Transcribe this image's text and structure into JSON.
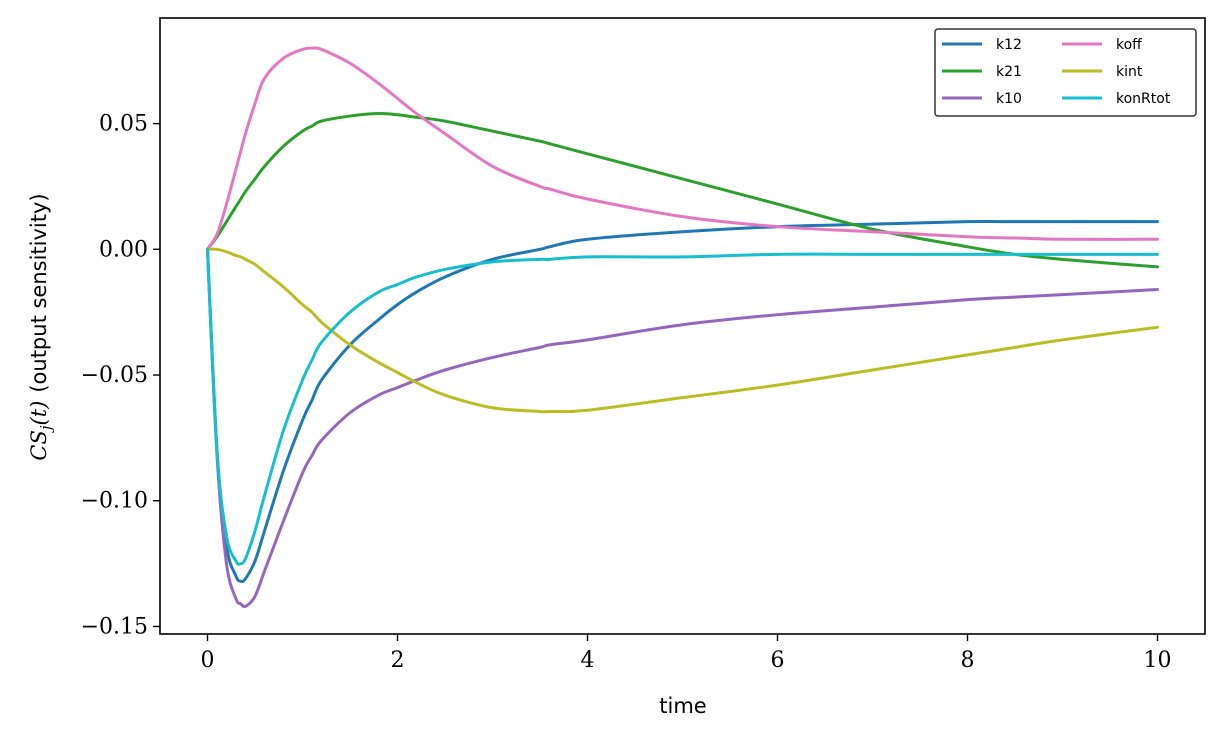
{
  "chart_data": {
    "type": "line",
    "xlabel": "time",
    "ylabel": "CS_j(t) (output sensitivity)",
    "ylabel_parts": {
      "math": "CS",
      "sub": "j",
      "arg": "(t)",
      "text": "(output sensitivity)"
    },
    "xlim": [
      -0.5,
      10.5
    ],
    "ylim": [
      -0.153,
      0.092
    ],
    "x_ticks": [
      0,
      2,
      4,
      6,
      8,
      10
    ],
    "x_tick_labels": [
      "0",
      "2",
      "4",
      "6",
      "8",
      "10"
    ],
    "y_ticks": [
      -0.15,
      -0.1,
      -0.05,
      0.0,
      0.05
    ],
    "y_tick_labels": [
      "−0.15",
      "−0.10",
      "−0.05",
      "0.00",
      "0.05"
    ],
    "grid": false,
    "legend": {
      "placement": "top-right",
      "columns": 2
    },
    "x": [
      0,
      0.1,
      0.2,
      0.3,
      0.35,
      0.4,
      0.5,
      0.6,
      0.8,
      1.0,
      1.1,
      1.2,
      1.5,
      1.8,
      2.0,
      2.2,
      2.5,
      3.0,
      3.5,
      3.6,
      4.0,
      5.0,
      6.0,
      7.0,
      8.0,
      8.5,
      9.0,
      10.0
    ],
    "series": [
      {
        "name": "k12",
        "color": "#1f77b4",
        "values": [
          0,
          -0.08,
          -0.118,
          -0.13,
          -0.132,
          -0.131,
          -0.124,
          -0.112,
          -0.088,
          -0.068,
          -0.06,
          -0.052,
          -0.038,
          -0.028,
          -0.022,
          -0.017,
          -0.011,
          -0.004,
          0.0,
          0.001,
          0.004,
          0.007,
          0.009,
          0.01,
          0.011,
          0.011,
          0.011,
          0.011
        ]
      },
      {
        "name": "k21",
        "color": "#2ca02c",
        "values": [
          0,
          0.005,
          0.011,
          0.017,
          0.02,
          0.023,
          0.028,
          0.033,
          0.041,
          0.047,
          0.049,
          0.051,
          0.053,
          0.054,
          0.0535,
          0.0525,
          0.051,
          0.047,
          0.043,
          0.042,
          0.038,
          0.028,
          0.018,
          0.008,
          0.001,
          -0.002,
          -0.004,
          -0.007
        ]
      },
      {
        "name": "k10",
        "color": "#9467bd",
        "values": [
          0,
          -0.082,
          -0.125,
          -0.139,
          -0.141,
          -0.142,
          -0.138,
          -0.128,
          -0.108,
          -0.089,
          -0.082,
          -0.076,
          -0.065,
          -0.058,
          -0.055,
          -0.052,
          -0.048,
          -0.043,
          -0.039,
          -0.038,
          -0.036,
          -0.03,
          -0.026,
          -0.023,
          -0.02,
          -0.019,
          -0.018,
          -0.016
        ]
      },
      {
        "name": "koff",
        "color": "#e377c2",
        "values": [
          0,
          0.006,
          0.018,
          0.032,
          0.039,
          0.046,
          0.058,
          0.068,
          0.076,
          0.0795,
          0.08,
          0.0795,
          0.074,
          0.066,
          0.06,
          0.054,
          0.046,
          0.033,
          0.025,
          0.024,
          0.02,
          0.013,
          0.009,
          0.007,
          0.005,
          0.0045,
          0.004,
          0.004
        ]
      },
      {
        "name": "kint",
        "color": "#bcbd22",
        "values": [
          0,
          0.0,
          -0.001,
          -0.0025,
          -0.003,
          -0.004,
          -0.006,
          -0.009,
          -0.015,
          -0.022,
          -0.025,
          -0.029,
          -0.038,
          -0.045,
          -0.049,
          -0.053,
          -0.058,
          -0.063,
          -0.0645,
          -0.0645,
          -0.064,
          -0.059,
          -0.054,
          -0.048,
          -0.042,
          -0.039,
          -0.036,
          -0.031
        ]
      },
      {
        "name": "konRtot",
        "color": "#17becf",
        "values": [
          0,
          -0.08,
          -0.114,
          -0.124,
          -0.125,
          -0.123,
          -0.112,
          -0.098,
          -0.072,
          -0.052,
          -0.044,
          -0.037,
          -0.025,
          -0.017,
          -0.014,
          -0.011,
          -0.008,
          -0.005,
          -0.004,
          -0.004,
          -0.003,
          -0.003,
          -0.002,
          -0.002,
          -0.002,
          -0.002,
          -0.002,
          -0.002
        ]
      }
    ]
  }
}
